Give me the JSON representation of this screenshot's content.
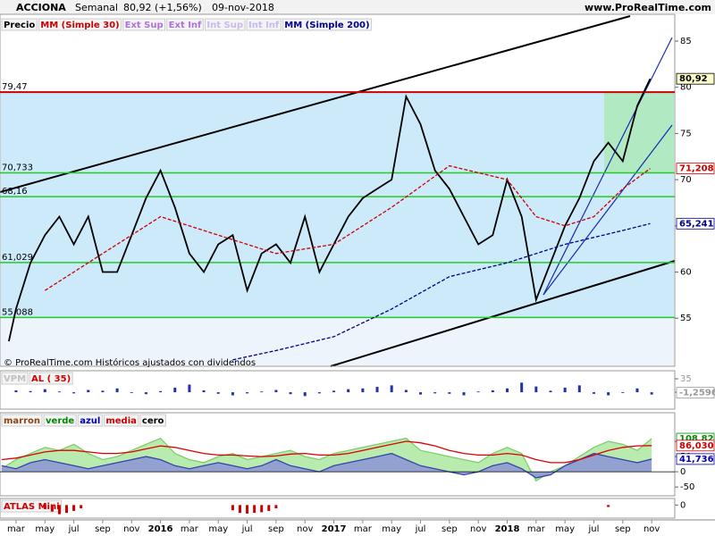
{
  "header": {
    "symbol": "ACCIONA",
    "period": "Semanal",
    "quote": "80,92 (+1,56%)",
    "date": "09-nov-2018",
    "site": "www.ProRealTime.com"
  },
  "x_axis": {
    "xlim": [
      0.89,
      47.6
    ],
    "xticks": [
      {
        "value": 2,
        "label": "mar"
      },
      {
        "value": 4,
        "label": "may"
      },
      {
        "value": 6,
        "label": "jul"
      },
      {
        "value": 8,
        "label": "sep"
      },
      {
        "value": 10,
        "label": "nov"
      },
      {
        "value": 12,
        "label": "2016"
      },
      {
        "value": 14,
        "label": "mar"
      },
      {
        "value": 16,
        "label": "may"
      },
      {
        "value": 18,
        "label": "jul"
      },
      {
        "value": 20,
        "label": "sep"
      },
      {
        "value": 22,
        "label": "nov"
      },
      {
        "value": 24,
        "label": "2017"
      },
      {
        "value": 26,
        "label": "mar"
      },
      {
        "value": 28,
        "label": "may"
      },
      {
        "value": 30,
        "label": "jul"
      },
      {
        "value": 32,
        "label": "sep"
      },
      {
        "value": 34,
        "label": "nov"
      },
      {
        "value": 36,
        "label": "2018"
      },
      {
        "value": 38,
        "label": "mar"
      },
      {
        "value": 40,
        "label": "may"
      },
      {
        "value": 42,
        "label": "jul"
      },
      {
        "value": 44,
        "label": "sep"
      },
      {
        "value": 46,
        "label": "nov"
      }
    ]
  },
  "chart_data": [
    {
      "type": "line",
      "legend": [
        {
          "label": "Precio",
          "color": "#000000"
        },
        {
          "label": "MM (Simple 30)",
          "color": "#cc0000"
        },
        {
          "label": "Ext Sup",
          "color": "#b070e0"
        },
        {
          "label": "Ext Inf",
          "color": "#b070e0"
        },
        {
          "label": "Int Sup",
          "color": "#c8b8f0"
        },
        {
          "label": "Int Inf",
          "color": "#c8b8f0"
        },
        {
          "label": "MM (Simple 200)",
          "color": "#00008b"
        }
      ],
      "series": [
        {
          "color": "#000000",
          "x": [
            1.5,
            2,
            3,
            4,
            5,
            6,
            7,
            8,
            9,
            10,
            11,
            12,
            13,
            14,
            15,
            16,
            17,
            18,
            19,
            20,
            21,
            22,
            23,
            24,
            25,
            26,
            27,
            28,
            29,
            30,
            31,
            32,
            33,
            34,
            35,
            36,
            37,
            38,
            39,
            40,
            41,
            42,
            43,
            44,
            45,
            45.9
          ],
          "values": [
            52.5,
            56,
            61,
            64,
            66,
            63,
            66,
            60,
            60,
            64,
            68,
            71,
            67,
            62,
            60,
            63,
            64,
            58,
            62,
            63,
            61,
            66,
            60,
            63,
            66,
            68,
            69,
            70,
            79,
            76,
            71,
            69,
            66,
            63,
            64,
            70,
            66,
            57,
            61,
            65,
            68,
            72,
            74,
            72,
            78,
            80.92
          ]
        },
        {
          "color": "#cc0000",
          "dash": true,
          "x": [
            4,
            8,
            12,
            16,
            20,
            24,
            28,
            32,
            36,
            38,
            40,
            42,
            44,
            45.9
          ],
          "values": [
            58,
            62,
            66,
            64,
            62,
            63,
            67,
            71.5,
            70,
            66,
            65,
            66,
            69,
            71.208
          ]
        },
        {
          "color": "#00008b",
          "dash": true,
          "x": [
            17,
            20,
            24,
            28,
            32,
            36,
            40,
            44,
            45.9
          ],
          "values": [
            50.5,
            51.5,
            53,
            56,
            59.5,
            61,
            63,
            64.5,
            65.241
          ]
        }
      ],
      "levels": [
        {
          "value": 79.47,
          "label": "79,47",
          "color": "#cc0000"
        },
        {
          "value": 70.733,
          "label": "70,733",
          "color": "#22cc22"
        },
        {
          "value": 68.16,
          "label": "68,16",
          "color": "#22cc22"
        },
        {
          "value": 61.029,
          "label": "61,029",
          "color": "#22cc22"
        },
        {
          "value": 55.088,
          "label": "55,088",
          "color": "#22cc22"
        }
      ],
      "markers": [
        {
          "value": 80.92,
          "label": "80,92",
          "color": "#000000"
        },
        {
          "value": 71.208,
          "label": "71,208",
          "color": "#cc0000"
        },
        {
          "value": 65.241,
          "label": "65,241",
          "color": "#00008b"
        }
      ],
      "ylim": [
        49.8,
        87.9
      ],
      "yticks": [
        55,
        60,
        65,
        70,
        75,
        80,
        85
      ],
      "footnote": "© ProRealTime.com Históricos ajustados con dividendos"
    },
    {
      "type": "bar",
      "legend": [
        {
          "label": "VPM",
          "color": "#c0c0c0"
        },
        {
          "label": "AL ( 35)",
          "color": "#cc0000"
        }
      ],
      "x": [
        2,
        3,
        4,
        5,
        6,
        7,
        8,
        9,
        10,
        11,
        12,
        13,
        14,
        15,
        16,
        17,
        18,
        19,
        20,
        21,
        22,
        23,
        24,
        25,
        26,
        27,
        28,
        29,
        30,
        31,
        32,
        33,
        34,
        35,
        36,
        37,
        38,
        39,
        40,
        41,
        42,
        43,
        44,
        45,
        46
      ],
      "values": [
        5,
        3,
        8,
        2,
        -3,
        6,
        4,
        10,
        -2,
        -5,
        3,
        12,
        20,
        5,
        -4,
        -8,
        -3,
        2,
        6,
        -5,
        -10,
        -3,
        4,
        8,
        10,
        14,
        18,
        6,
        -6,
        -3,
        -4,
        -8,
        2,
        5,
        10,
        25,
        15,
        4,
        12,
        18,
        -4,
        -8,
        -2,
        10,
        -6
      ],
      "color": "#2233aa",
      "ylim": [
        -44,
        56
      ],
      "yticks": [
        0,
        35
      ],
      "markers": [
        {
          "value": -1.2596,
          "label": "-1,2596",
          "color": "#999999"
        }
      ]
    },
    {
      "type": "area",
      "legend": [
        {
          "label": "marron",
          "color": "#8b4513"
        },
        {
          "label": "verde",
          "color": "#008800"
        },
        {
          "label": "azul",
          "color": "#0000aa"
        },
        {
          "label": "media",
          "color": "#cc0000"
        },
        {
          "label": "cero",
          "color": "#000000"
        }
      ],
      "x": [
        1,
        2,
        3,
        4,
        5,
        6,
        7,
        8,
        9,
        10,
        11,
        12,
        13,
        14,
        15,
        16,
        17,
        18,
        19,
        20,
        21,
        22,
        23,
        24,
        25,
        26,
        27,
        28,
        29,
        30,
        31,
        32,
        33,
        34,
        35,
        36,
        37,
        38,
        39,
        40,
        41,
        42,
        43,
        44,
        45,
        46
      ],
      "series": [
        {
          "color": "#7ccf6a",
          "fill": "#a8e69a",
          "values": [
            10,
            40,
            60,
            80,
            70,
            90,
            60,
            40,
            50,
            70,
            90,
            110,
            60,
            40,
            30,
            50,
            60,
            40,
            50,
            60,
            70,
            50,
            40,
            60,
            70,
            80,
            90,
            100,
            110,
            70,
            60,
            50,
            40,
            30,
            60,
            80,
            60,
            -30,
            0,
            20,
            50,
            80,
            100,
            90,
            70,
            108.82
          ]
        },
        {
          "color": "#3344aa",
          "fill": "#8a8fd8",
          "values": [
            20,
            10,
            30,
            40,
            30,
            20,
            10,
            20,
            30,
            40,
            50,
            40,
            20,
            10,
            20,
            30,
            20,
            10,
            20,
            40,
            20,
            10,
            0,
            20,
            30,
            40,
            50,
            60,
            40,
            20,
            10,
            0,
            -10,
            0,
            20,
            30,
            10,
            -20,
            -10,
            20,
            40,
            60,
            50,
            40,
            30,
            41.736
          ]
        },
        {
          "color": "#dd0000",
          "values": [
            40,
            45,
            55,
            65,
            70,
            70,
            65,
            60,
            60,
            65,
            75,
            85,
            80,
            70,
            60,
            55,
            55,
            52,
            50,
            52,
            58,
            60,
            55,
            55,
            60,
            70,
            80,
            90,
            100,
            95,
            85,
            70,
            60,
            55,
            55,
            60,
            55,
            40,
            30,
            30,
            40,
            55,
            70,
            80,
            85,
            86.03
          ]
        }
      ],
      "ylim": [
        -79,
        194
      ],
      "yticks": [
        -50,
        0,
        50,
        100
      ],
      "markers": [
        {
          "value": 108.82,
          "label": "108,82",
          "color": "#008800"
        },
        {
          "value": 86.03,
          "label": "86,030",
          "color": "#cc0000"
        },
        {
          "value": 41.736,
          "label": "41,736",
          "color": "#0000aa"
        }
      ]
    },
    {
      "type": "bar",
      "legend": [
        {
          "label": "ATLAS Mini",
          "color": "#cc0000"
        }
      ],
      "x": [
        4,
        4.5,
        5,
        5.5,
        6,
        6.5,
        17,
        17.5,
        18,
        18.5,
        19,
        19.5,
        20,
        43
      ],
      "values": [
        -6,
        -10,
        -14,
        -12,
        -9,
        -5,
        -8,
        -12,
        -13,
        -12,
        -11,
        -9,
        -5,
        -3
      ],
      "color": "#cc0000",
      "ylim": [
        -20,
        10
      ],
      "yticks": [
        0
      ]
    }
  ]
}
